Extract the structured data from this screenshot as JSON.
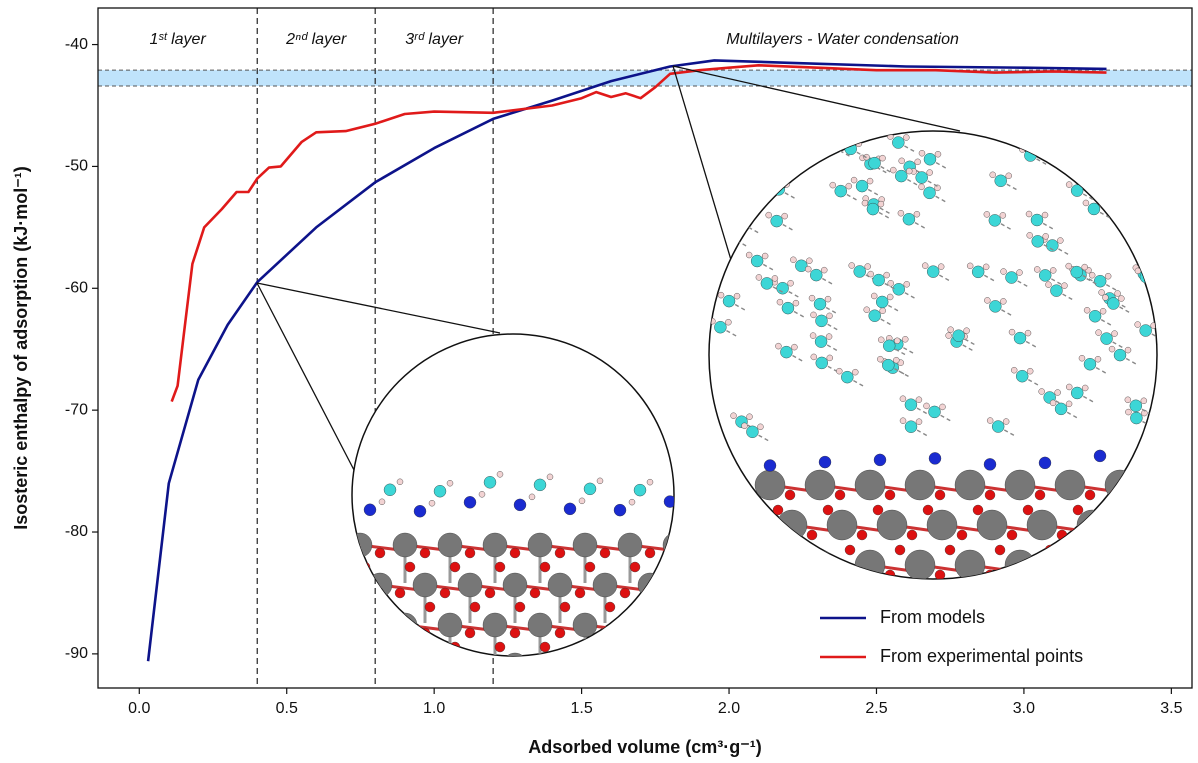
{
  "chart_data": {
    "type": "line",
    "x_label": "Adsorbed volume (cm³·g⁻¹)",
    "y_label": "Isosteric enthalpy of adsorption (kJ·mol⁻¹)",
    "xlim": [
      -0.14,
      3.57
    ],
    "ylim": [
      -92.8,
      -37.0
    ],
    "xticks": [
      {
        "value": 0,
        "label": "0.0"
      },
      0.5,
      {
        "value": 1,
        "label": "1.0"
      },
      1.5,
      {
        "value": 2,
        "label": "2.0"
      },
      2.5,
      {
        "value": 3,
        "label": "3.0"
      },
      3.5
    ],
    "yticks": [
      -40,
      -50,
      -60,
      -70,
      -80,
      -90
    ],
    "layer_boundaries": [
      0.4,
      0.8,
      1.2
    ],
    "region_labels": [
      "1ˢᵗ layer",
      "2ⁿᵈ layer",
      "3ʳᵈ layer",
      "Multilayers - Water condensation"
    ],
    "reference_band": {
      "range": [
        -42.1,
        -43.4
      ],
      "color": "#bfe3fb"
    },
    "legend_position": "lower right",
    "series": [
      {
        "name": "From models",
        "color": "#0d138a",
        "x": [
          0.03,
          0.1,
          0.2,
          0.3,
          0.4,
          0.6,
          0.8,
          1.0,
          1.2,
          1.4,
          1.6,
          1.8,
          1.95,
          2.2,
          2.6,
          3.0,
          3.28
        ],
        "values": [
          -90.6,
          -76,
          -67.5,
          -63,
          -59.5,
          -55,
          -51.3,
          -48.5,
          -46.1,
          -44.6,
          -43.0,
          -41.8,
          -41.3,
          -41.5,
          -41.8,
          -41.9,
          -42.0
        ]
      },
      {
        "name": "From experimental points",
        "color": "#e01a1a",
        "x": [
          0.11,
          0.13,
          0.15,
          0.18,
          0.22,
          0.28,
          0.33,
          0.37,
          0.4,
          0.44,
          0.48,
          0.55,
          0.6,
          0.7,
          0.8,
          0.9,
          1.0,
          1.2,
          1.4,
          1.5,
          1.55,
          1.6,
          1.65,
          1.7,
          1.75,
          1.8,
          1.9,
          2.0,
          2.1,
          2.3,
          2.5,
          2.7,
          2.9,
          3.1,
          3.28
        ],
        "values": [
          -69.3,
          -68,
          -64,
          -58,
          -55,
          -53.5,
          -52.1,
          -52.1,
          -51,
          -50.1,
          -50,
          -48,
          -47.2,
          -47.1,
          -46.5,
          -45.7,
          -45.5,
          -45.6,
          -45.0,
          -44.4,
          -43.9,
          -44.3,
          -44.0,
          -44.4,
          -43.5,
          -42.4,
          -42.1,
          -41.9,
          -41.7,
          -41.9,
          -42.1,
          -42.1,
          -42.3,
          -42.2,
          -42.3
        ]
      }
    ]
  }
}
